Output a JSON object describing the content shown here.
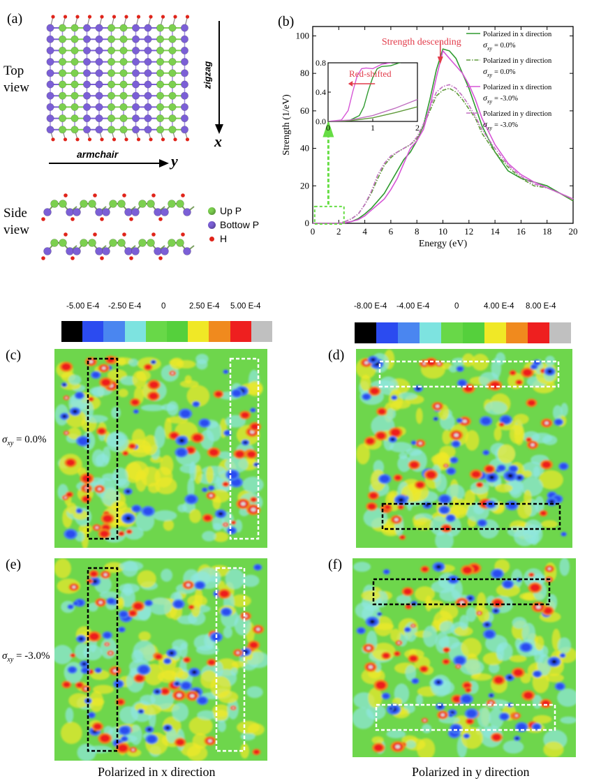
{
  "panel_a": {
    "label": "(a)",
    "top_view": [
      "Top",
      "view"
    ],
    "side_view": [
      "Side",
      "view"
    ],
    "zigzag": "zigzag",
    "armchair": "armchair",
    "axis_x": "x",
    "axis_y": "y",
    "legend": [
      {
        "label": "Up P",
        "color": "#7cd04f"
      },
      {
        "label": "Bottow P",
        "color": "#7b5fd6"
      },
      {
        "label": "H",
        "color": "#e0241a"
      }
    ]
  },
  "panel_b": {
    "label": "(b)",
    "annotation_descending": "Strength descending",
    "annotation_redshift": "Red-shifted"
  },
  "chart_data": {
    "type": "line",
    "xlabel": "Energy (eV)",
    "ylabel": "Strength (1/eV)",
    "xlim": [
      0,
      20
    ],
    "ylim": [
      0,
      105
    ],
    "xticks": [
      "0",
      "2",
      "4",
      "6",
      "8",
      "10",
      "12",
      "14",
      "16",
      "18",
      "20"
    ],
    "yticks": [
      "0",
      "20",
      "40",
      "60",
      "80",
      "100"
    ],
    "series": [
      {
        "name": "Polarized in x direction",
        "sigma": "= 0.0%",
        "color": "#2e9a2e",
        "dash": "solid",
        "x": [
          0,
          2,
          2.5,
          3,
          3.5,
          4,
          4.5,
          5,
          5.5,
          6,
          6.5,
          7,
          7.5,
          8,
          8.5,
          9,
          9.5,
          10,
          10.5,
          11,
          11.5,
          12,
          12.5,
          13,
          14,
          15,
          16,
          17,
          18,
          19,
          20
        ],
        "y": [
          0,
          0,
          0.3,
          1,
          2.5,
          5,
          8,
          12,
          16,
          22,
          28,
          34,
          38,
          44,
          52,
          66,
          82,
          93,
          92,
          88,
          80,
          72,
          62,
          52,
          38,
          28,
          24,
          22,
          20,
          16,
          12
        ]
      },
      {
        "name": "Polarized in y direction",
        "sigma": "= 0.0%",
        "color": "#5f9a3a",
        "dash": "dashdot",
        "x": [
          0,
          2,
          2.5,
          3,
          3.5,
          4,
          4.5,
          5,
          5.5,
          6,
          6.5,
          7,
          7.5,
          8,
          8.5,
          9,
          9.5,
          10,
          10.5,
          11,
          11.5,
          12,
          12.5,
          13,
          14,
          15,
          16,
          17,
          18,
          19,
          20
        ],
        "y": [
          0,
          0,
          1,
          2.5,
          5,
          10,
          16,
          24,
          31,
          35,
          38,
          40,
          42,
          45,
          52,
          60,
          68,
          71,
          72,
          70,
          66,
          61,
          56,
          48,
          38,
          30,
          24,
          20,
          19,
          16,
          12
        ]
      },
      {
        "name": "Polarized in x direction",
        "sigma": "= -3.0%",
        "color": "#d655d6",
        "dash": "solid",
        "x": [
          0,
          2,
          2.5,
          3,
          3.5,
          4,
          4.5,
          5,
          5.5,
          6,
          6.5,
          7,
          7.5,
          8,
          8.5,
          9,
          9.5,
          10,
          10.5,
          11,
          11.5,
          12,
          12.5,
          13,
          14,
          15,
          16,
          17,
          18,
          19,
          20
        ],
        "y": [
          0,
          0,
          0.3,
          1,
          2,
          4,
          7,
          10,
          13,
          18,
          24,
          32,
          40,
          44,
          50,
          62,
          78,
          92,
          88,
          84,
          80,
          74,
          66,
          56,
          42,
          32,
          26,
          22,
          19,
          16,
          13
        ]
      },
      {
        "name": "Polarized in y direction",
        "sigma": "= -3.0%",
        "color": "#c06fc0",
        "dash": "dashdot",
        "x": [
          0,
          2,
          2.5,
          3,
          3.5,
          4,
          4.5,
          5,
          5.5,
          6,
          6.5,
          7,
          7.5,
          8,
          8.5,
          9,
          9.5,
          10,
          10.5,
          11,
          11.5,
          12,
          12.5,
          13,
          14,
          15,
          16,
          17,
          18,
          19,
          20
        ],
        "y": [
          0,
          0,
          1,
          2.5,
          5,
          10,
          17,
          26,
          32,
          36,
          38,
          40,
          42,
          46,
          53,
          62,
          70,
          73,
          74,
          72,
          68,
          63,
          57,
          50,
          40,
          31,
          25,
          21,
          19,
          16,
          13
        ]
      }
    ],
    "legend_sigma_symbol": "σ",
    "legend_sigma_sub": "xy",
    "inset": {
      "xlim": [
        0,
        2
      ],
      "ylim": [
        0,
        0.8
      ],
      "xticks": [
        "0",
        "1",
        "2"
      ],
      "yticks": [
        "0.0",
        "0.4",
        "0.8"
      ],
      "series": [
        {
          "color": "#2e9a2e",
          "dash": "solid",
          "x": [
            0,
            0.3,
            0.5,
            0.7,
            0.8,
            0.9,
            1.0,
            1.1,
            1.2,
            1.4,
            1.6,
            1.8,
            2.0
          ],
          "y": [
            0,
            0,
            0.02,
            0.08,
            0.2,
            0.42,
            0.6,
            0.72,
            0.75,
            0.76,
            0.8,
            0.85,
            0.9
          ]
        },
        {
          "color": "#d655d6",
          "dash": "solid",
          "x": [
            0,
            0.3,
            0.45,
            0.55,
            0.65,
            0.75,
            0.85,
            1.0,
            1.1,
            1.2,
            1.4,
            1.6,
            1.8,
            2.0
          ],
          "y": [
            0,
            0.02,
            0.15,
            0.4,
            0.62,
            0.72,
            0.73,
            0.72,
            0.75,
            0.78,
            0.8,
            0.85,
            0.9,
            0.95
          ]
        },
        {
          "color": "#5f9a3a",
          "dash": "solid",
          "x": [
            0,
            0.5,
            1.0,
            1.5,
            2.0
          ],
          "y": [
            0,
            0.01,
            0.05,
            0.12,
            0.2
          ]
        },
        {
          "color": "#c06fc0",
          "dash": "solid",
          "x": [
            0,
            0.5,
            1.0,
            1.5,
            2.0
          ],
          "y": [
            0,
            0.02,
            0.08,
            0.18,
            0.3
          ]
        }
      ]
    }
  },
  "colorbar_left": {
    "labels": [
      "-5.00 E-4",
      "-2.50 E-4",
      "0",
      "2.50 E-4",
      "5.00 E-4"
    ],
    "colors": [
      "#000000",
      "#2b4bf0",
      "#4a86f0",
      "#7de3e0",
      "#68d848",
      "#55d03c",
      "#f0e826",
      "#f08a1e",
      "#ee1f1f",
      "#c0c0c0"
    ]
  },
  "colorbar_right": {
    "labels": [
      "-8.00 E-4",
      "-4.00 E-4",
      "0",
      "4.00 E-4",
      "8.00 E-4"
    ],
    "colors": [
      "#000000",
      "#2b4bf0",
      "#4a86f0",
      "#7de3e0",
      "#68d848",
      "#55d03c",
      "#f0e826",
      "#f08a1e",
      "#ee1f1f",
      "#c0c0c0"
    ]
  },
  "maps": {
    "c": "(c)",
    "d": "(d)",
    "e": "(e)",
    "f": "(f)",
    "sigma_top": "= 0.0%",
    "sigma_bottom": "= -3.0%",
    "sigma_symbol": "σ",
    "sigma_sub": "xy",
    "caption_left": "Polarized in x direction",
    "caption_right": "Polarized in y direction"
  }
}
